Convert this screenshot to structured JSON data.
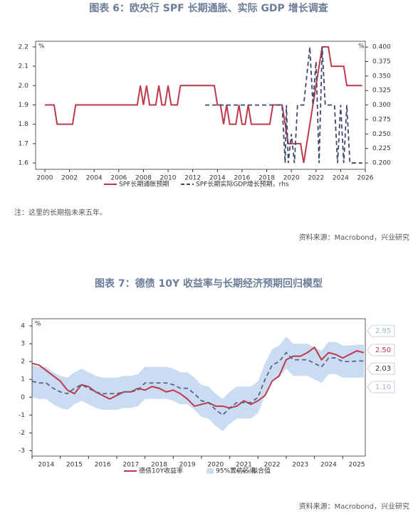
{
  "note": "注：这里的长期指未来五年。",
  "sources": [
    "资料来源：Macrobond，兴业研究",
    "资料来源：Macrobond，兴业研究"
  ],
  "chart_data": [
    {
      "type": "line",
      "title": "图表 6：欧央行 SPF 长期通胀、实际 GDP 增长调查",
      "y_unit": "%",
      "y2_unit": "%",
      "xlim": [
        1999.25,
        2026
      ],
      "xticks": [
        2000,
        2002,
        2004,
        2006,
        2008,
        2010,
        2012,
        2014,
        2016,
        2018,
        2020,
        2022,
        2024,
        2026
      ],
      "ylim": [
        1.567,
        2.229
      ],
      "yticks": [
        1.6,
        1.7,
        1.8,
        1.9,
        {
          "value": 2,
          "label": "2.0"
        },
        2.1,
        2.2
      ],
      "y2lim": [
        0.189,
        0.41
      ],
      "y2ticks": [
        {
          "value": 0.2,
          "label": "0.200"
        },
        {
          "value": 0.225,
          "label": "0.225"
        },
        {
          "value": 0.25,
          "label": "0.250"
        },
        {
          "value": 0.275,
          "label": "0.275"
        },
        {
          "value": 0.3,
          "label": "0.300"
        },
        {
          "value": 0.325,
          "label": "0.325"
        },
        {
          "value": 0.35,
          "label": "0.350"
        },
        {
          "value": 0.375,
          "label": "0.375"
        },
        {
          "value": 0.4,
          "label": "0.400"
        }
      ],
      "series": [
        {
          "name": "SPF长期通胀预期",
          "color": "#c0394b",
          "x": [
            2000,
            2000.75,
            2001,
            2002.25,
            2002.5,
            2007.5,
            2007.75,
            2008,
            2008.25,
            2008.5,
            2009,
            2009.25,
            2009.5,
            2009.75,
            2010,
            2010.25,
            2010.75,
            2011,
            2013.75,
            2014,
            2014.25,
            2014.5,
            2014.75,
            2015,
            2015.5,
            2015.75,
            2016,
            2016.25,
            2016.5,
            2016.75,
            2018.25,
            2018.5,
            2019.25,
            2019.5,
            2019.75,
            2020.75,
            2021,
            2021.25,
            2021.5,
            2021.75,
            2022,
            2022.25,
            2022.5,
            2023,
            2023.25,
            2024.25,
            2024.5,
            2025.75
          ],
          "values": [
            1.9,
            1.9,
            1.8,
            1.8,
            1.9,
            1.9,
            2.0,
            1.9,
            2.0,
            1.9,
            1.9,
            2.0,
            1.9,
            1.9,
            2.0,
            1.9,
            1.9,
            2.0,
            2.0,
            1.9,
            1.9,
            1.8,
            1.9,
            1.8,
            1.8,
            1.9,
            1.8,
            1.8,
            1.9,
            1.8,
            1.8,
            1.9,
            1.9,
            1.8,
            1.7,
            1.7,
            1.6,
            1.7,
            1.8,
            1.9,
            2.0,
            2.1,
            2.2,
            2.2,
            2.1,
            2.1,
            2.0,
            2.0
          ]
        },
        {
          "name": "SPF长期实际GDP增长预期，rhs",
          "color": "#3d4a6b",
          "dash": true,
          "axis": "y2",
          "x": [
            2013,
            2019.25,
            2019.5,
            2019.6,
            2019.75,
            2020,
            2020.25,
            2020.5,
            2021,
            2021.25,
            2021.5,
            2021.75,
            2022,
            2022.25,
            2022.5,
            2022.75,
            2023.5,
            2023.75,
            2024,
            2024.25,
            2024.5,
            2024.75,
            2025.75
          ],
          "values": [
            0.3,
            0.3,
            0.2,
            0.3,
            0.2,
            0.25,
            0.2,
            0.3,
            0.3,
            0.35,
            0.4,
            0.3,
            0.375,
            0.2,
            0.4,
            0.3,
            0.3,
            0.2,
            0.3,
            0.2,
            0.3,
            0.2,
            0.2
          ]
        }
      ]
    },
    {
      "type": "line",
      "title": "图表 7：德债 10Y 收益率与长期经济预期回归模型",
      "y_unit": "%",
      "xlim": [
        2014,
        2025.8
      ],
      "xticks": [
        2014,
        2015,
        2016,
        2017,
        2018,
        2019,
        2020,
        2021,
        2022,
        2023,
        2024,
        2025
      ],
      "ylim": [
        -3.3,
        4.4
      ],
      "yticks": [
        -3,
        -2,
        -1,
        0,
        1,
        2,
        3,
        4
      ],
      "x": [
        2014,
        2014.25,
        2014.5,
        2014.75,
        2015,
        2015.25,
        2015.5,
        2015.75,
        2016,
        2016.25,
        2016.5,
        2016.75,
        2017,
        2017.25,
        2017.5,
        2017.75,
        2018,
        2018.25,
        2018.5,
        2018.75,
        2019,
        2019.25,
        2019.5,
        2019.75,
        2020,
        2020.25,
        2020.5,
        2020.75,
        2021,
        2021.25,
        2021.5,
        2021.75,
        2022,
        2022.25,
        2022.5,
        2022.75,
        2023,
        2023.25,
        2023.5,
        2023.75,
        2024,
        2024.25,
        2024.5,
        2024.75,
        2025,
        2025.25,
        2025.5,
        2025.75
      ],
      "series": [
        {
          "name": "95%置信区间",
          "color": "#c9dcf2",
          "upper": [
            1.8,
            1.7,
            1.7,
            1.4,
            1.2,
            1.1,
            1.4,
            1.6,
            1.4,
            1.2,
            1.1,
            1.1,
            1.1,
            1.2,
            1.2,
            1.3,
            1.7,
            1.7,
            1.7,
            1.7,
            1.6,
            1.4,
            1.4,
            1.1,
            0.7,
            0.6,
            0.2,
            -0.1,
            0.3,
            0.6,
            0.6,
            0.6,
            0.9,
            1.9,
            2.7,
            2.9,
            3.4,
            3.0,
            3.0,
            3.0,
            2.8,
            2.6,
            3.1,
            3.1,
            2.9,
            2.9,
            2.95,
            2.95
          ],
          "lower": [
            0.0,
            -0.1,
            -0.1,
            -0.4,
            -0.6,
            -0.7,
            -0.4,
            -0.2,
            -0.4,
            -0.6,
            -0.7,
            -0.7,
            -0.7,
            -0.6,
            -0.6,
            -0.5,
            -0.1,
            -0.1,
            -0.1,
            -0.1,
            -0.2,
            -0.4,
            -0.4,
            -0.7,
            -1.1,
            -1.2,
            -1.6,
            -1.9,
            -1.5,
            -1.2,
            -1.2,
            -1.2,
            -0.9,
            0.1,
            0.9,
            1.1,
            1.6,
            1.2,
            1.2,
            1.2,
            1.0,
            0.8,
            1.3,
            1.3,
            1.1,
            1.1,
            1.1,
            1.1
          ]
        },
        {
          "name": "德债10Y收益率",
          "color": "#c0394b",
          "values": [
            1.9,
            1.8,
            1.5,
            1.2,
            0.9,
            0.4,
            0.2,
            0.7,
            0.6,
            0.3,
            0.1,
            -0.1,
            0.1,
            0.3,
            0.3,
            0.5,
            0.4,
            0.6,
            0.5,
            0.3,
            0.4,
            0.2,
            -0.1,
            -0.5,
            -0.4,
            -0.3,
            -0.5,
            -0.5,
            -0.6,
            -0.5,
            -0.2,
            -0.4,
            -0.2,
            0.1,
            0.9,
            1.2,
            2.1,
            2.3,
            2.3,
            2.5,
            2.8,
            2.1,
            2.5,
            2.4,
            2.2,
            2.4,
            2.6,
            2.5
          ]
        },
        {
          "name": "拟合值",
          "color": "#5a6680",
          "dash": true,
          "values": [
            0.9,
            0.8,
            0.8,
            0.5,
            0.3,
            0.2,
            0.5,
            0.7,
            0.5,
            0.3,
            0.2,
            0.2,
            0.2,
            0.3,
            0.3,
            0.4,
            0.8,
            0.8,
            0.8,
            0.8,
            0.7,
            0.5,
            0.5,
            0.2,
            -0.2,
            -0.3,
            -0.7,
            -1.0,
            -0.6,
            -0.3,
            -0.3,
            -0.3,
            0.0,
            1.0,
            1.8,
            2.0,
            2.5,
            2.1,
            2.1,
            2.1,
            1.9,
            1.7,
            2.2,
            2.2,
            2.0,
            2.0,
            2.03,
            2.03
          ]
        }
      ],
      "annotations": [
        {
          "value": 2.95,
          "label": "2.95",
          "color": "#9fb4d0"
        },
        {
          "value": 2.5,
          "label": "2.50",
          "color": "#c0394b"
        },
        {
          "value": 2.03,
          "label": "2.03",
          "color": "#333333"
        },
        {
          "value": 1.1,
          "label": "1.10",
          "color": "#9fb4d0"
        }
      ]
    }
  ]
}
